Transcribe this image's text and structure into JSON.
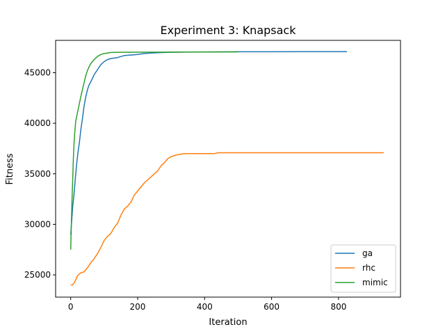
{
  "chart_data": {
    "type": "line",
    "title": "Experiment 3: Knapsack",
    "xlabel": "Iteration",
    "ylabel": "Fitness",
    "xlim": [
      -45,
      985
    ],
    "ylim": [
      22800,
      48200
    ],
    "xticks": [
      0,
      200,
      400,
      600,
      800
    ],
    "yticks": [
      25000,
      30000,
      35000,
      40000,
      45000
    ],
    "grid": false,
    "legend_position": "lower-right",
    "series": [
      {
        "name": "ga",
        "color": "#1f77b4",
        "points": [
          [
            0,
            29000
          ],
          [
            3,
            30300
          ],
          [
            6,
            31800
          ],
          [
            10,
            33000
          ],
          [
            14,
            34600
          ],
          [
            18,
            36000
          ],
          [
            22,
            37200
          ],
          [
            26,
            38100
          ],
          [
            30,
            39300
          ],
          [
            35,
            40400
          ],
          [
            40,
            41700
          ],
          [
            45,
            42600
          ],
          [
            50,
            43300
          ],
          [
            55,
            43800
          ],
          [
            60,
            44100
          ],
          [
            70,
            44800
          ],
          [
            80,
            45300
          ],
          [
            90,
            45800
          ],
          [
            100,
            46100
          ],
          [
            110,
            46300
          ],
          [
            120,
            46400
          ],
          [
            140,
            46500
          ],
          [
            160,
            46700
          ],
          [
            180,
            46750
          ],
          [
            200,
            46800
          ],
          [
            220,
            46900
          ],
          [
            240,
            46950
          ],
          [
            260,
            46980
          ],
          [
            280,
            47000
          ],
          [
            300,
            47020
          ],
          [
            350,
            47050
          ],
          [
            400,
            47060
          ],
          [
            500,
            47070
          ],
          [
            600,
            47070
          ],
          [
            700,
            47080
          ],
          [
            825,
            47080
          ]
        ]
      },
      {
        "name": "rhc",
        "color": "#ff7f0e",
        "points": [
          [
            0,
            24000
          ],
          [
            5,
            24000
          ],
          [
            10,
            24200
          ],
          [
            15,
            24500
          ],
          [
            20,
            24900
          ],
          [
            30,
            25200
          ],
          [
            40,
            25300
          ],
          [
            50,
            25700
          ],
          [
            60,
            26200
          ],
          [
            70,
            26600
          ],
          [
            80,
            27100
          ],
          [
            90,
            27700
          ],
          [
            100,
            28400
          ],
          [
            110,
            28800
          ],
          [
            120,
            29100
          ],
          [
            130,
            29700
          ],
          [
            140,
            30100
          ],
          [
            150,
            30900
          ],
          [
            160,
            31500
          ],
          [
            170,
            31800
          ],
          [
            180,
            32200
          ],
          [
            190,
            32900
          ],
          [
            200,
            33300
          ],
          [
            210,
            33700
          ],
          [
            220,
            34100
          ],
          [
            230,
            34400
          ],
          [
            240,
            34700
          ],
          [
            250,
            35000
          ],
          [
            260,
            35300
          ],
          [
            270,
            35800
          ],
          [
            280,
            36100
          ],
          [
            290,
            36500
          ],
          [
            300,
            36700
          ],
          [
            310,
            36800
          ],
          [
            320,
            36900
          ],
          [
            330,
            36950
          ],
          [
            345,
            37000
          ],
          [
            360,
            37000
          ],
          [
            400,
            37000
          ],
          [
            430,
            37000
          ],
          [
            440,
            37080
          ],
          [
            500,
            37080
          ],
          [
            600,
            37080
          ],
          [
            700,
            37080
          ],
          [
            800,
            37080
          ],
          [
            935,
            37080
          ]
        ]
      },
      {
        "name": "mimic",
        "color": "#2ca02c",
        "points": [
          [
            0,
            27500
          ],
          [
            2,
            30000
          ],
          [
            4,
            32500
          ],
          [
            6,
            34500
          ],
          [
            8,
            36500
          ],
          [
            10,
            38000
          ],
          [
            12,
            39000
          ],
          [
            15,
            40200
          ],
          [
            20,
            41000
          ],
          [
            25,
            41800
          ],
          [
            30,
            42600
          ],
          [
            35,
            43300
          ],
          [
            40,
            44000
          ],
          [
            45,
            44700
          ],
          [
            50,
            45200
          ],
          [
            55,
            45600
          ],
          [
            60,
            45900
          ],
          [
            70,
            46300
          ],
          [
            80,
            46600
          ],
          [
            90,
            46800
          ],
          [
            100,
            46900
          ],
          [
            110,
            46950
          ],
          [
            120,
            47000
          ],
          [
            150,
            47020
          ],
          [
            200,
            47030
          ],
          [
            300,
            47040
          ],
          [
            400,
            47050
          ],
          [
            500,
            47060
          ]
        ]
      }
    ]
  }
}
